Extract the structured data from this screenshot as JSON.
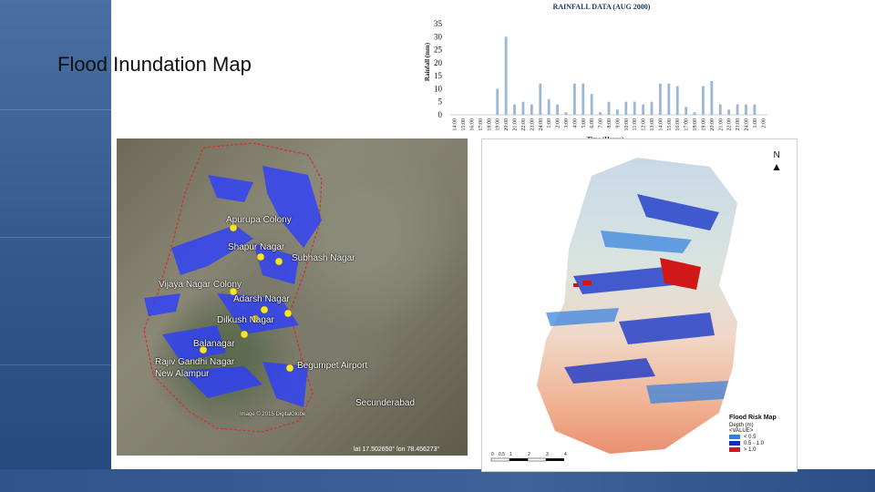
{
  "slide": {
    "title": "Flood Inundation Map"
  },
  "chart_data": {
    "type": "bar",
    "title": "RAINFALL DATA (AUG 2000)",
    "xlabel": "Time (Hours)",
    "ylabel": "Rainfall (mm)",
    "ylim": [
      0,
      35
    ],
    "yticks": [
      0,
      5,
      10,
      15,
      20,
      25,
      30,
      35
    ],
    "grid": false,
    "bar_color": "#9bb7d4",
    "categories": [
      "14:00",
      "15:00",
      "16:00",
      "17:00",
      "18:00",
      "19:00",
      "20:00",
      "21:00",
      "22:00",
      "23:00",
      "24:00",
      "1:00",
      "2:00",
      "3:00",
      "4:00",
      "5:00",
      "6:00",
      "7:00",
      "8:00",
      "9:00",
      "10:00",
      "11:00",
      "12:00",
      "13:00",
      "14:00",
      "15:00",
      "16:00",
      "17:00",
      "18:00",
      "19:00",
      "20:00",
      "21:00",
      "22:00",
      "23:00",
      "24:00",
      "1:00",
      "2:00"
    ],
    "values": [
      0,
      0,
      0,
      0,
      0,
      10,
      30,
      4,
      5,
      4,
      12,
      6,
      4,
      1,
      12,
      12,
      8,
      1,
      5,
      2,
      5,
      5,
      4,
      5,
      12,
      12,
      11,
      3,
      1,
      11,
      13,
      4,
      2,
      4,
      4,
      4,
      0
    ]
  },
  "map_left": {
    "labels": [
      "Apurupa Colony",
      "Shapur Nagar",
      "Subhash Nagar",
      "Vijaya Nagar Colony",
      "Adarsh Nagar",
      "Dilkush Nagar",
      "Balanagar",
      "Begumpet Airport",
      "Rajiv Gandhi Nagar",
      "New Alampur",
      "Secunderabad"
    ],
    "small_text": "Image © 2015 DigitalGlobe",
    "coords": "lat 17.502650° lon 78.456273°"
  },
  "map_right": {
    "legend_title": "Flood Risk Map",
    "legend_subtitle": "Depth (m)",
    "legend_value": "<VALUE>",
    "legend_items": [
      {
        "label": "< 0.5",
        "color": "#2f7fe0"
      },
      {
        "label": "0.5 - 1.0",
        "color": "#1a2bb8"
      },
      {
        "label": "> 1.0",
        "color": "#d01818"
      }
    ],
    "scale_labels": [
      "0",
      "0.5",
      "1",
      "2",
      "3",
      "4"
    ],
    "north_label": "N"
  }
}
